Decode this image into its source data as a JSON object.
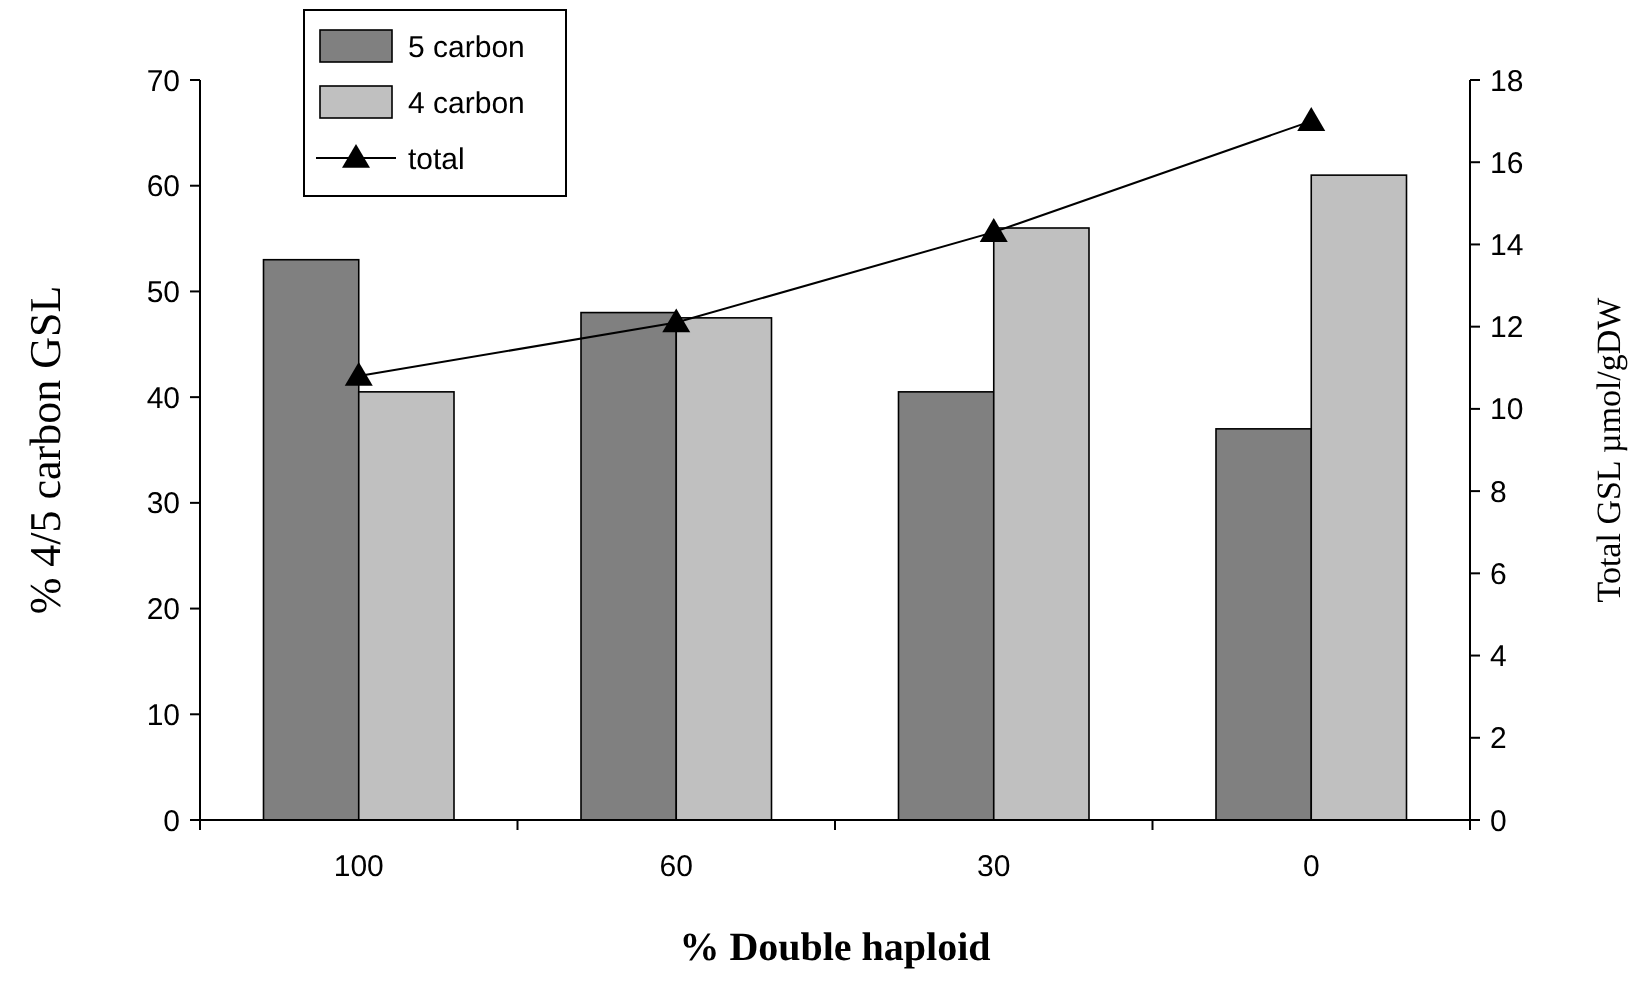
{
  "chart_data": {
    "type": "bar",
    "xlabel": "% Double haploid",
    "ylabel": "% 4/5 carbon GSL",
    "y2label": "Total GSL µmol/gDW",
    "categories": [
      "100",
      "60",
      "30",
      "0"
    ],
    "series": [
      {
        "name": "5 carbon",
        "color": "#808080",
        "values": [
          53,
          48,
          40.5,
          37
        ]
      },
      {
        "name": "4 carbon",
        "color": "#c0c0c0",
        "values": [
          40.5,
          47.5,
          56,
          61
        ]
      },
      {
        "name": "total",
        "type": "line",
        "axis": "y2",
        "color": "#000000",
        "marker": "triangle",
        "values": [
          10.8,
          12.1,
          14.3,
          17
        ]
      }
    ],
    "ylim": [
      0,
      70
    ],
    "yticks": [
      0,
      10,
      20,
      30,
      40,
      50,
      60,
      70
    ],
    "y2lim": [
      0,
      18
    ],
    "y2ticks": [
      0,
      2,
      4,
      6,
      8,
      10,
      12,
      14,
      16,
      18
    ],
    "legend": "top left",
    "grid": false
  }
}
